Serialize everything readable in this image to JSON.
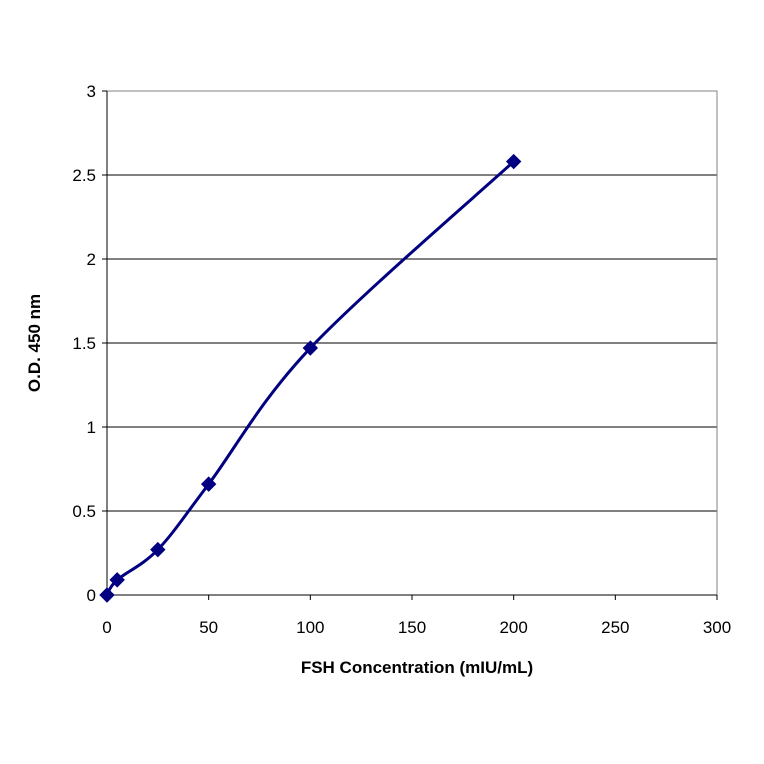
{
  "chart_data": {
    "type": "line",
    "title": "",
    "xlabel": "FSH Concentration (mIU/mL)",
    "ylabel": "O.D. 450 nm",
    "xlim": [
      0,
      300
    ],
    "ylim": [
      0,
      3
    ],
    "x_ticks": [
      "0",
      "50",
      "100",
      "150",
      "200",
      "250",
      "300"
    ],
    "y_ticks": [
      "0",
      "0.5",
      "1",
      "1.5",
      "2",
      "2.5",
      "3"
    ],
    "grid": "horizontal major gridlines",
    "legend": "none",
    "series": [
      {
        "color": "#000080",
        "marker": "diamond",
        "smoothed": true,
        "points": [
          {
            "x": 0,
            "y": 0.0
          },
          {
            "x": 5,
            "y": 0.09
          },
          {
            "x": 25,
            "y": 0.27
          },
          {
            "x": 50,
            "y": 0.66
          },
          {
            "x": 100,
            "y": 1.47
          },
          {
            "x": 200,
            "y": 2.58
          }
        ]
      }
    ]
  }
}
